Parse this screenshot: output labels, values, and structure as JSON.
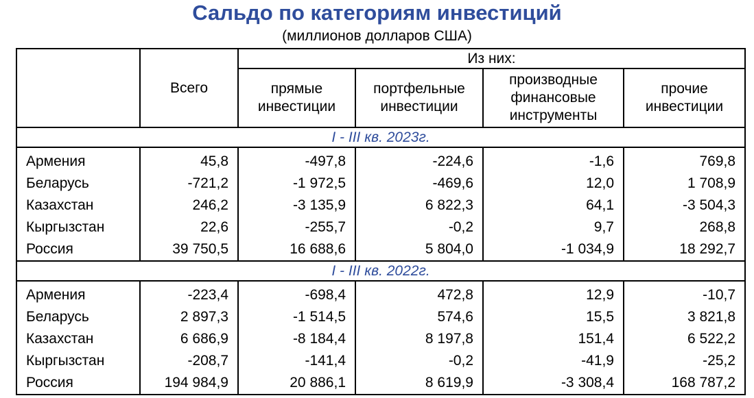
{
  "title": "Сальдо по категориям инвестиций",
  "subtitle": "(миллионов долларов США)",
  "header": {
    "total": "Всего",
    "of_which": "Из них:",
    "direct": "прямые инвестиции",
    "portfolio": "портфельные инвестиции",
    "derivatives": "производные финансовые инструменты",
    "other": "прочие инвестиции"
  },
  "sections": [
    {
      "period": "I - III кв. 2023г.",
      "rows": [
        {
          "country": "Армения",
          "total": "45,8",
          "direct": "-497,8",
          "portfolio": "-224,6",
          "derivatives": "-1,6",
          "other": "769,8"
        },
        {
          "country": "Беларусь",
          "total": "-721,2",
          "direct": "-1 972,5",
          "portfolio": "-469,6",
          "derivatives": "12,0",
          "other": "1 708,9"
        },
        {
          "country": "Казахстан",
          "total": "246,2",
          "direct": "-3 135,9",
          "portfolio": "6 822,3",
          "derivatives": "64,1",
          "other": "-3 504,3"
        },
        {
          "country": "Кыргызстан",
          "total": "22,6",
          "direct": "-255,7",
          "portfolio": "-0,2",
          "derivatives": "9,7",
          "other": "268,8"
        },
        {
          "country": "Россия",
          "total": "39 750,5",
          "direct": "16 688,6",
          "portfolio": "5 804,0",
          "derivatives": "-1 034,9",
          "other": "18 292,7"
        }
      ]
    },
    {
      "period": "I - III кв. 2022г.",
      "rows": [
        {
          "country": "Армения",
          "total": "-223,4",
          "direct": "-698,4",
          "portfolio": "472,8",
          "derivatives": "12,9",
          "other": "-10,7"
        },
        {
          "country": "Беларусь",
          "total": "2 897,3",
          "direct": "-1 514,5",
          "portfolio": "574,6",
          "derivatives": "15,5",
          "other": "3 821,8"
        },
        {
          "country": "Казахстан",
          "total": "6 686,9",
          "direct": "-8 184,4",
          "portfolio": "8 197,8",
          "derivatives": "151,4",
          "other": "6 522,2"
        },
        {
          "country": "Кыргызстан",
          "total": "-208,7",
          "direct": "-141,4",
          "portfolio": "-0,2",
          "derivatives": "-41,9",
          "other": "-25,2"
        },
        {
          "country": "Россия",
          "total": "194 984,9",
          "direct": "20 886,1",
          "portfolio": "8 619,9",
          "derivatives": "-3 308,4",
          "other": "168 787,2"
        }
      ]
    }
  ]
}
